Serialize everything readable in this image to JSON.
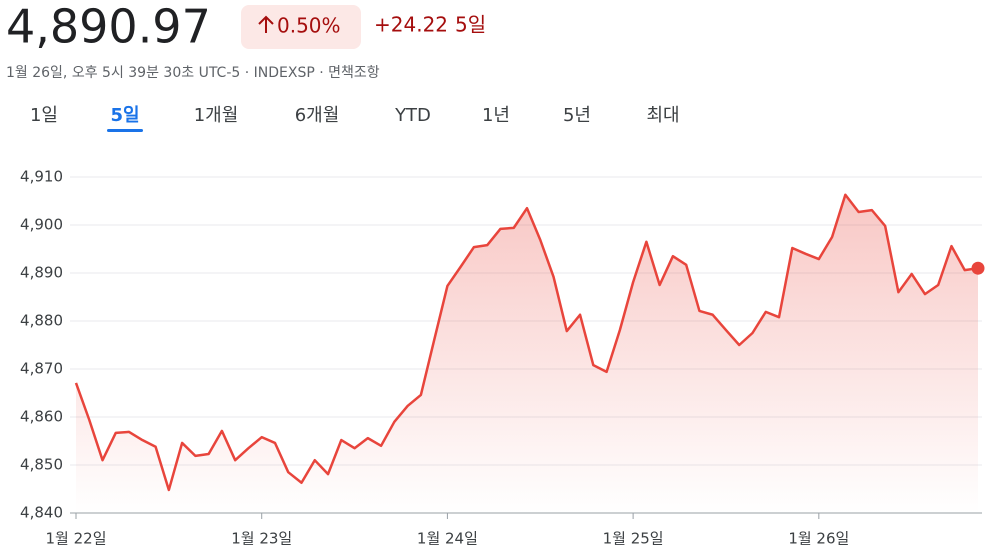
{
  "header": {
    "price": "4,890.97",
    "change_pct": "0.50%",
    "change": "+24.22",
    "period": "5일",
    "subtitle": "1월 26일, 오후 5시 39분 30초 UTC-5 · INDEXSP · ",
    "disclaimer": "면책조항"
  },
  "tabs": {
    "items": [
      "1일",
      "5일",
      "1개월",
      "6개월",
      "YTD",
      "1년",
      "5년",
      "최대"
    ],
    "active": 1
  },
  "chart_data": {
    "type": "line",
    "color": "#e8453c",
    "grid": true,
    "area": true,
    "values": [
      4867.1,
      4859.4,
      4851.0,
      4856.7,
      4856.9,
      4855.2,
      4853.8,
      4844.8,
      4854.6,
      4851.9,
      4852.3,
      4857.1,
      4851.0,
      4853.5,
      4855.8,
      4854.6,
      4848.5,
      4846.3,
      4851.0,
      4848.1,
      4855.2,
      4853.5,
      4855.6,
      4854.0,
      4859.0,
      4862.3,
      4864.6,
      4876.0,
      4887.3,
      4891.3,
      4895.4,
      4895.8,
      4899.2,
      4899.4,
      4903.5,
      4896.9,
      4889.2,
      4877.9,
      4881.3,
      4870.8,
      4869.4,
      4878.1,
      4888.1,
      4896.5,
      4887.5,
      4893.5,
      4891.7,
      4882.1,
      4881.3,
      4878.1,
      4875.0,
      4877.5,
      4881.9,
      4880.8,
      4895.2,
      4894.0,
      4892.9,
      4897.5,
      4906.3,
      4902.7,
      4903.1,
      4899.8,
      4886.0,
      4889.8,
      4885.6,
      4887.5,
      4895.6,
      4890.6,
      4891.0
    ],
    "xlim": [
      0,
      68
    ],
    "xticks": [
      {
        "value": 0,
        "label": "1월 22일"
      },
      {
        "value": 14,
        "label": "1월 23일"
      },
      {
        "value": 28,
        "label": "1월 24일"
      },
      {
        "value": 42,
        "label": "1월 25일"
      },
      {
        "value": 56,
        "label": "1월 26일"
      }
    ],
    "ylim": [
      4840,
      4910
    ],
    "yticks": [
      {
        "value": 4840,
        "label": "4,840"
      },
      {
        "value": 4850,
        "label": "4,850"
      },
      {
        "value": 4860,
        "label": "4,860"
      },
      {
        "value": 4870,
        "label": "4,870"
      },
      {
        "value": 4880,
        "label": "4,880"
      },
      {
        "value": 4890,
        "label": "4,890"
      },
      {
        "value": 4900,
        "label": "4,900"
      },
      {
        "value": 4910,
        "label": "4,910"
      }
    ]
  }
}
